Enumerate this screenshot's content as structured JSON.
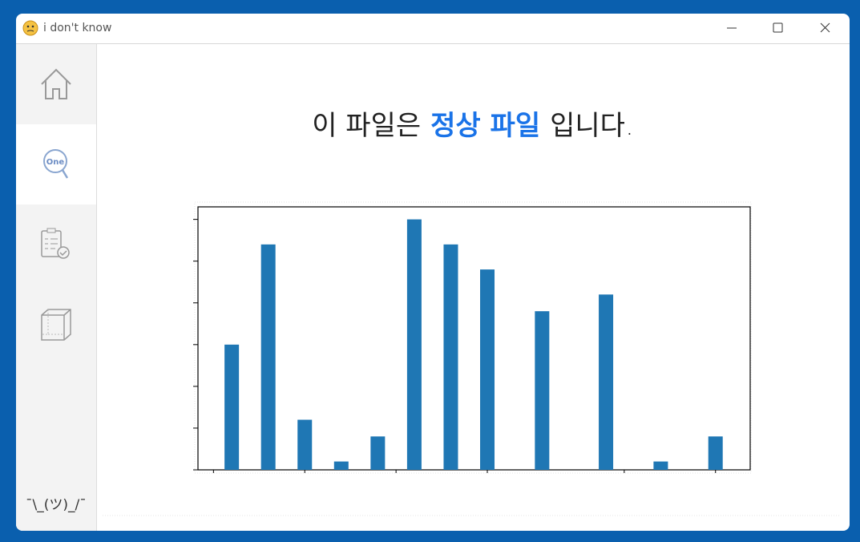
{
  "window": {
    "title": "i don't know"
  },
  "sidebar": {
    "search_icon_text": "One",
    "footer": "¯\\_(ツ)_/¯"
  },
  "message": {
    "before": "이 파일은",
    "highlight": "정상 파일",
    "after": "입니다."
  },
  "chart_data": {
    "type": "bar",
    "x": [
      2,
      6,
      10,
      14,
      18,
      22,
      26,
      30,
      36,
      43,
      49,
      55
    ],
    "values": [
      3.0,
      5.4,
      1.2,
      0.2,
      0.8,
      6.0,
      5.4,
      4.8,
      3.8,
      4.2,
      0.2,
      0.8
    ],
    "color": "#1f77b4",
    "xlim": [
      -1.7,
      58.8
    ],
    "xticks": [
      0,
      10,
      20,
      30,
      45,
      55
    ],
    "ylim": [
      0,
      6.3
    ],
    "yticks": [
      0,
      1,
      2,
      3,
      4,
      5,
      6
    ],
    "grid": false
  }
}
